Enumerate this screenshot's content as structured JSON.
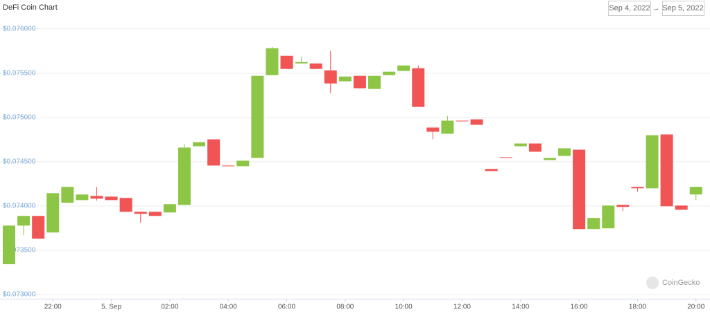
{
  "chart_data": {
    "type": "candlestick",
    "title": "DeFi Coin Chart",
    "date_range": {
      "from": "Sep 4, 2022",
      "separator": "→",
      "to": "Sep 5, 2022"
    },
    "watermark": "CoinGecko",
    "x": [
      "20:30",
      "21:00",
      "21:30",
      "22:00",
      "22:30",
      "23:00",
      "23:30",
      "00:00",
      "00:30",
      "01:00",
      "01:30",
      "02:00",
      "02:30",
      "03:00",
      "03:30",
      "04:00",
      "04:30",
      "05:00",
      "05:30",
      "06:00",
      "06:30",
      "07:00",
      "07:30",
      "08:00",
      "08:30",
      "09:00",
      "09:30",
      "10:00",
      "10:30",
      "11:00",
      "11:30",
      "12:00",
      "12:30",
      "13:00",
      "13:30",
      "14:00",
      "14:30",
      "15:00",
      "15:30",
      "16:00",
      "16:30",
      "17:00",
      "17:30",
      "18:00",
      "18:30",
      "19:00",
      "19:30",
      "20:00"
    ],
    "open": [
      0.073343,
      0.073779,
      0.073888,
      0.073701,
      0.074036,
      0.074067,
      0.074114,
      0.074106,
      0.074091,
      0.073935,
      0.073935,
      0.073927,
      0.074013,
      0.074675,
      0.074753,
      0.074457,
      0.074449,
      0.074543,
      0.075478,
      0.075696,
      0.07561,
      0.07561,
      0.075532,
      0.075408,
      0.07547,
      0.075322,
      0.075478,
      0.075525,
      0.075556,
      0.074886,
      0.074816,
      0.074964,
      0.074979,
      0.074418,
      0.074551,
      0.074675,
      0.074706,
      0.074519,
      0.074566,
      0.074636,
      0.07374,
      0.073748,
      0.074013,
      0.074216,
      0.0742,
      0.074808,
      0.074005,
      0.07413
    ],
    "high": [
      0.073779,
      0.073888,
      0.073888,
      0.074145,
      0.074216,
      0.07413,
      0.074216,
      0.074106,
      0.074091,
      0.073935,
      0.073935,
      0.074021,
      0.074699,
      0.074722,
      0.074753,
      0.074457,
      0.074512,
      0.07547,
      0.075797,
      0.075696,
      0.075688,
      0.07561,
      0.075751,
      0.075462,
      0.07547,
      0.07547,
      0.075517,
      0.075587,
      0.075587,
      0.074886,
      0.075018,
      0.074964,
      0.074979,
      0.074418,
      0.074551,
      0.074706,
      0.074706,
      0.074543,
      0.074652,
      0.074636,
      0.073865,
      0.074005,
      0.074013,
      0.074216,
      0.0748,
      0.074808,
      0.074005,
      0.074216
    ],
    "low": [
      0.073343,
      0.07367,
      0.073631,
      0.073701,
      0.074036,
      0.074067,
      0.07406,
      0.074067,
      0.073935,
      0.07381,
      0.073888,
      0.073927,
      0.074013,
      0.074675,
      0.074457,
      0.074449,
      0.074449,
      0.074543,
      0.075478,
      0.075548,
      0.07561,
      0.075548,
      0.075275,
      0.075408,
      0.07533,
      0.075322,
      0.075478,
      0.075525,
      0.075119,
      0.074753,
      0.074816,
      0.074956,
      0.074917,
      0.074395,
      0.074543,
      0.074675,
      0.074613,
      0.074519,
      0.074566,
      0.07374,
      0.07374,
      0.073748,
      0.073943,
      0.074161,
      0.0742,
      0.073997,
      0.073958,
      0.074067
    ],
    "close": [
      0.073779,
      0.073888,
      0.073631,
      0.074145,
      0.074216,
      0.07413,
      0.074083,
      0.074067,
      0.073935,
      0.073912,
      0.073888,
      0.074021,
      0.07466,
      0.074722,
      0.074457,
      0.074449,
      0.074512,
      0.07547,
      0.075782,
      0.075548,
      0.075626,
      0.075548,
      0.075384,
      0.075462,
      0.07533,
      0.07547,
      0.075517,
      0.075587,
      0.075119,
      0.074839,
      0.074964,
      0.074956,
      0.074917,
      0.074395,
      0.074543,
      0.074706,
      0.074613,
      0.074543,
      0.074652,
      0.07374,
      0.073865,
      0.074005,
      0.07399,
      0.0742,
      0.0748,
      0.073997,
      0.073958,
      0.074216
    ],
    "up_color": "#8dc647",
    "down_color": "#f05454",
    "ylim": [
      0.073,
      0.0761
    ],
    "yticks": [
      {
        "value": 0.073,
        "label": "$0.073000"
      },
      {
        "value": 0.0735,
        "label": "$0.073500"
      },
      {
        "value": 0.074,
        "label": "$0.074000"
      },
      {
        "value": 0.0745,
        "label": "$0.074500"
      },
      {
        "value": 0.075,
        "label": "$0.075000"
      },
      {
        "value": 0.0755,
        "label": "$0.075500"
      },
      {
        "value": 0.076,
        "label": "$0.076000"
      }
    ],
    "xticks": [
      "22:00",
      {
        "value": "00:00",
        "label": "5. Sep"
      },
      "02:00",
      "04:00",
      "06:00",
      "08:00",
      "10:00",
      "12:00",
      "14:00",
      "16:00",
      "18:00",
      "20:00"
    ],
    "grid": true
  }
}
